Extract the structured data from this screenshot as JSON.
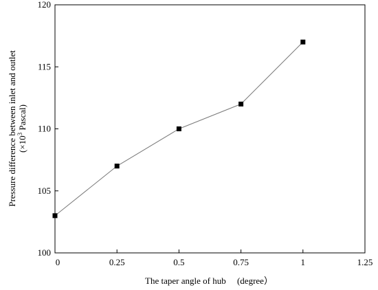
{
  "chart_data": {
    "type": "line",
    "title": "",
    "xlabel": "The taper angle of hub 　(degree）",
    "ylabel_line1": "Pressure difference between inlet and outlet",
    "ylabel_line2_prefix": "(×10",
    "ylabel_line2_sup": "3",
    "ylabel_line2_suffix": " Pascal)",
    "xlim": [
      0,
      1.25
    ],
    "ylim": [
      100,
      120
    ],
    "xticks": [
      0,
      0.25,
      0.5,
      0.75,
      1,
      1.25
    ],
    "xtick_labels": [
      "0",
      "0.25",
      "0.5",
      "0.75",
      "1",
      "1.25"
    ],
    "yticks": [
      100,
      105,
      110,
      115,
      120
    ],
    "ytick_labels": [
      "100",
      "105",
      "110",
      "115",
      "120"
    ],
    "grid": false,
    "marker": "square",
    "series": [
      {
        "x": [
          0,
          0.25,
          0.5,
          0.75,
          1
        ],
        "y": [
          103,
          107,
          110,
          112,
          117
        ]
      }
    ],
    "colors": {
      "line": "#7a7a7a",
      "marker": "#000000",
      "axis": "#000000"
    }
  }
}
